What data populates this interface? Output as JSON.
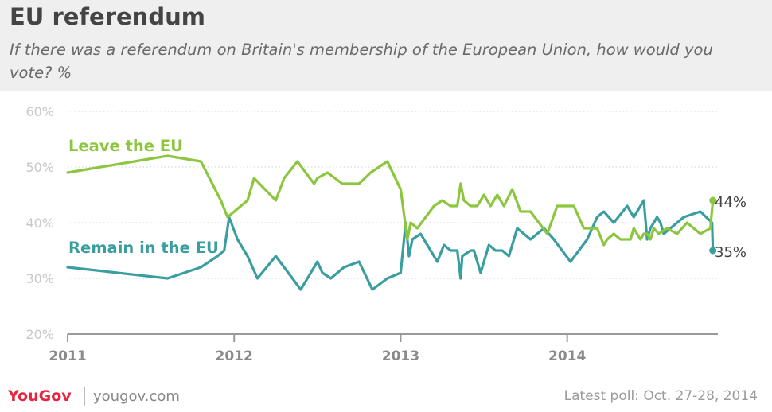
{
  "header": {
    "title": "EU referendum",
    "subtitle": "If there was a referendum on Britain's membership of the European Union, how would you vote? %"
  },
  "footer": {
    "brand_you": "You",
    "brand_gov": "Gov",
    "site": "yougov.com",
    "latest_poll": "Latest poll: Oct. 27-28, 2014"
  },
  "colors": {
    "leave": "#8cc63e",
    "remain": "#3a9ea0",
    "axis_text": "#c8c8c8",
    "year_text": "#8a8a8a",
    "grid": "#d0d0d0",
    "brand": "#e8243f"
  },
  "chart_data": {
    "type": "line",
    "title": "EU referendum",
    "subtitle": "If there was a referendum on Britain's membership of the European Union, how would you vote? %",
    "xlim": [
      2011.0,
      2014.905
    ],
    "ylim": [
      20,
      60
    ],
    "y_ticks": [
      20,
      30,
      40,
      50,
      60
    ],
    "y_tick_labels": [
      "20%",
      "30%",
      "40%",
      "50%",
      "60%"
    ],
    "x_ticks": [
      2011,
      2012,
      2013,
      2014
    ],
    "x_tick_labels": [
      "2011",
      "2012",
      "2013",
      "2014"
    ],
    "grid": true,
    "legend": "inline labels",
    "series": [
      {
        "name": "Leave the EU",
        "end_label": "44%",
        "points": [
          [
            2011.0,
            49
          ],
          [
            2011.6,
            52
          ],
          [
            2011.8,
            51
          ],
          [
            2011.92,
            44
          ],
          [
            2011.96,
            41
          ],
          [
            2012.08,
            44
          ],
          [
            2012.12,
            48
          ],
          [
            2012.25,
            44
          ],
          [
            2012.3,
            48
          ],
          [
            2012.38,
            51
          ],
          [
            2012.48,
            47
          ],
          [
            2012.5,
            48
          ],
          [
            2012.56,
            49
          ],
          [
            2012.65,
            47
          ],
          [
            2012.75,
            47
          ],
          [
            2012.82,
            49
          ],
          [
            2012.92,
            51
          ],
          [
            2013.0,
            46
          ],
          [
            2013.04,
            37
          ],
          [
            2013.06,
            40
          ],
          [
            2013.1,
            39
          ],
          [
            2013.15,
            41
          ],
          [
            2013.2,
            43
          ],
          [
            2013.25,
            44
          ],
          [
            2013.3,
            43
          ],
          [
            2013.34,
            43
          ],
          [
            2013.36,
            47
          ],
          [
            2013.38,
            44
          ],
          [
            2013.42,
            43
          ],
          [
            2013.46,
            43
          ],
          [
            2013.5,
            45
          ],
          [
            2013.54,
            43
          ],
          [
            2013.58,
            45
          ],
          [
            2013.62,
            43
          ],
          [
            2013.67,
            46
          ],
          [
            2013.72,
            42
          ],
          [
            2013.78,
            42
          ],
          [
            2013.88,
            38
          ],
          [
            2013.94,
            43
          ],
          [
            2014.04,
            43
          ],
          [
            2014.1,
            39
          ],
          [
            2014.18,
            39
          ],
          [
            2014.22,
            36
          ],
          [
            2014.24,
            37
          ],
          [
            2014.28,
            38
          ],
          [
            2014.32,
            37
          ],
          [
            2014.38,
            37
          ],
          [
            2014.4,
            39
          ],
          [
            2014.44,
            37
          ],
          [
            2014.46,
            38
          ],
          [
            2014.48,
            38
          ],
          [
            2014.5,
            37
          ],
          [
            2014.52,
            39
          ],
          [
            2014.55,
            38
          ],
          [
            2014.6,
            39
          ],
          [
            2014.66,
            38
          ],
          [
            2014.72,
            40
          ],
          [
            2014.8,
            38
          ],
          [
            2014.86,
            39
          ],
          [
            2014.875,
            44
          ]
        ]
      },
      {
        "name": "Remain in the EU",
        "end_label": "35%",
        "points": [
          [
            2011.0,
            32
          ],
          [
            2011.6,
            30
          ],
          [
            2011.8,
            32
          ],
          [
            2011.9,
            34
          ],
          [
            2011.94,
            35
          ],
          [
            2011.97,
            41
          ],
          [
            2012.02,
            37
          ],
          [
            2012.08,
            34
          ],
          [
            2012.14,
            30
          ],
          [
            2012.25,
            34
          ],
          [
            2012.3,
            32
          ],
          [
            2012.4,
            28
          ],
          [
            2012.5,
            33
          ],
          [
            2012.53,
            31
          ],
          [
            2012.58,
            30
          ],
          [
            2012.66,
            32
          ],
          [
            2012.75,
            33
          ],
          [
            2012.83,
            28
          ],
          [
            2012.92,
            30
          ],
          [
            2013.0,
            31
          ],
          [
            2013.03,
            40
          ],
          [
            2013.05,
            34
          ],
          [
            2013.07,
            37
          ],
          [
            2013.12,
            38
          ],
          [
            2013.22,
            33
          ],
          [
            2013.26,
            36
          ],
          [
            2013.3,
            35
          ],
          [
            2013.34,
            35
          ],
          [
            2013.36,
            30
          ],
          [
            2013.37,
            34
          ],
          [
            2013.42,
            35
          ],
          [
            2013.44,
            35
          ],
          [
            2013.48,
            31
          ],
          [
            2013.53,
            36
          ],
          [
            2013.57,
            35
          ],
          [
            2013.61,
            35
          ],
          [
            2013.65,
            34
          ],
          [
            2013.7,
            39
          ],
          [
            2013.78,
            37
          ],
          [
            2013.86,
            39
          ],
          [
            2013.92,
            37
          ],
          [
            2014.02,
            33
          ],
          [
            2014.12,
            37
          ],
          [
            2014.18,
            41
          ],
          [
            2014.22,
            42
          ],
          [
            2014.28,
            40
          ],
          [
            2014.36,
            43
          ],
          [
            2014.4,
            41
          ],
          [
            2014.46,
            44
          ],
          [
            2014.48,
            37
          ],
          [
            2014.5,
            39
          ],
          [
            2014.54,
            41
          ],
          [
            2014.56,
            40
          ],
          [
            2014.58,
            38
          ],
          [
            2014.62,
            39
          ],
          [
            2014.7,
            41
          ],
          [
            2014.8,
            42
          ],
          [
            2014.87,
            40
          ],
          [
            2014.875,
            35
          ]
        ]
      }
    ]
  }
}
